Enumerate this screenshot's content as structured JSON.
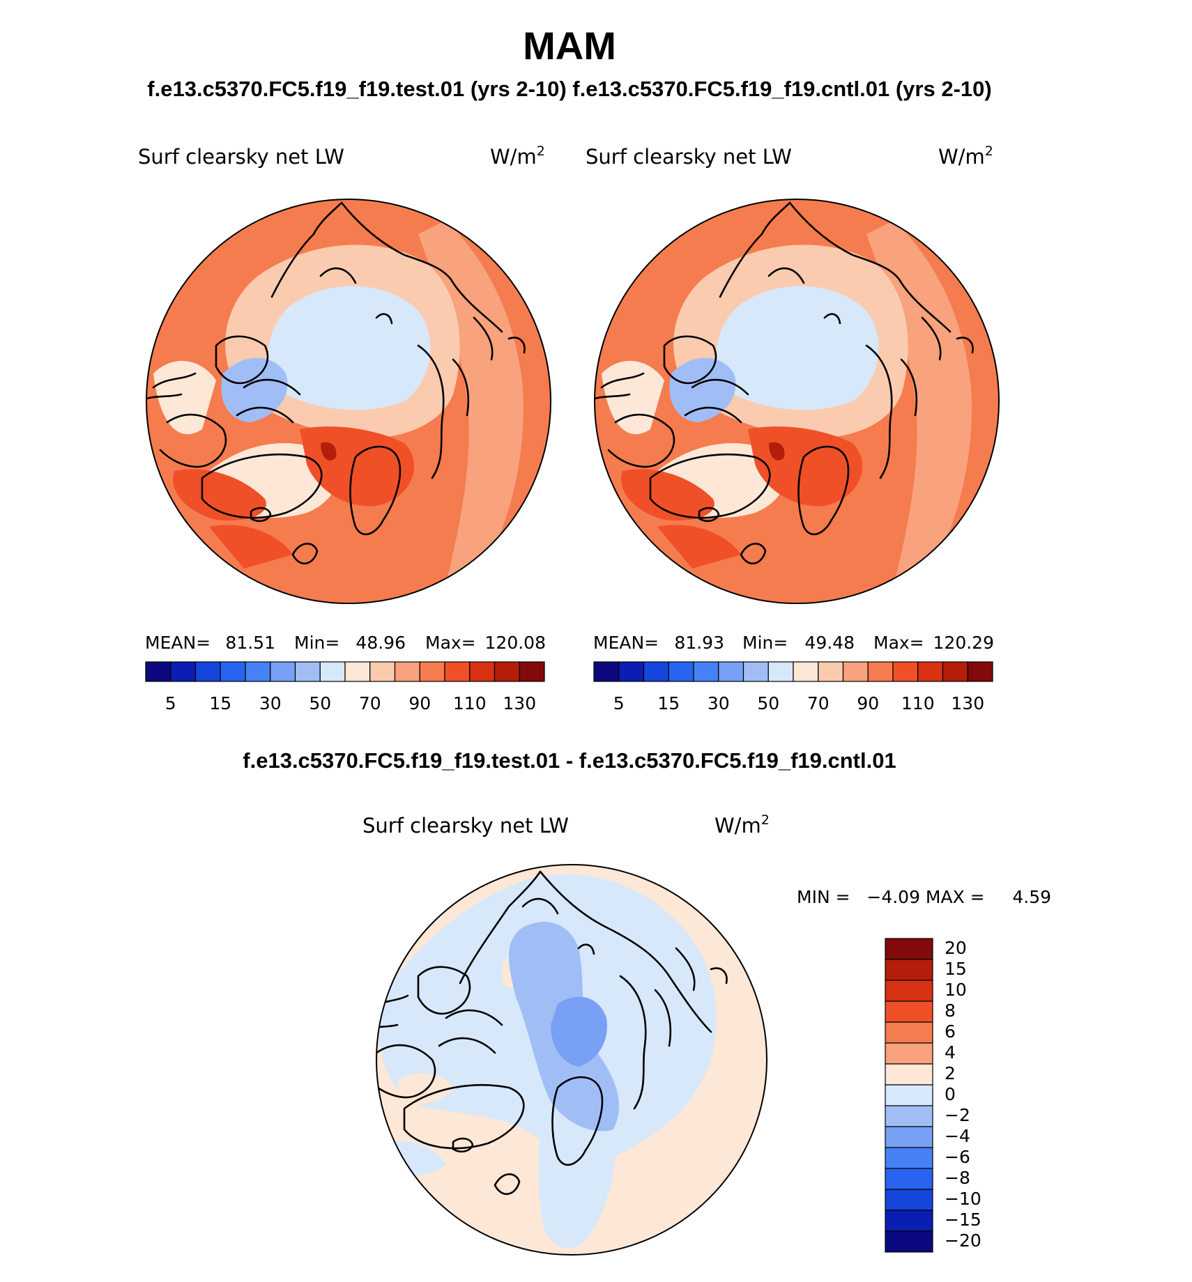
{
  "title": "MAM",
  "subtitle": "f.e13.c5370.FC5.f19_f19.test.01 (yrs 2-10) f.e13.c5370.FC5.f19_f19.cntl.01 (yrs 2-10)",
  "diff_title": "f.e13.c5370.FC5.f19_f19.test.01 - f.e13.c5370.FC5.f19_f19.cntl.01",
  "panels": [
    {
      "variable": "Surf clearsky net LW",
      "units_base": "W/m",
      "units_exp": "2",
      "stats": {
        "mean_label": "MEAN=",
        "mean": "81.51",
        "min_label": "Min=",
        "min": "48.96",
        "max_label": "Max=",
        "max": "120.08"
      }
    },
    {
      "variable": "Surf clearsky net LW",
      "units_base": "W/m",
      "units_exp": "2",
      "stats": {
        "mean_label": "MEAN=",
        "mean": "81.93",
        "min_label": "Min=",
        "min": "49.48",
        "max_label": "Max=",
        "max": "120.29"
      }
    }
  ],
  "diff_panel": {
    "variable": "Surf clearsky net LW",
    "units_base": "W/m",
    "units_exp": "2",
    "minmax_text": "MIN =   −4.09 MAX =     4.59"
  },
  "colorbar_top": {
    "colors": [
      "#0a0a7e",
      "#0a1eb4",
      "#1446dc",
      "#2864f0",
      "#4682f5",
      "#78a0f5",
      "#a0bef5",
      "#d7e8fa",
      "#fde7d7",
      "#fbcbb0",
      "#f8a27e",
      "#f57c4e",
      "#f05028",
      "#d73214",
      "#b41e0a",
      "#820a0a"
    ],
    "labels": [
      "5",
      "15",
      "30",
      "50",
      "70",
      "90",
      "110",
      "130"
    ]
  },
  "colorbar_diff": {
    "colors": [
      "#820a0a",
      "#b41e0a",
      "#d73214",
      "#f05028",
      "#f57c4e",
      "#f8a27e",
      "#fde7d7",
      "#d7e8fa",
      "#a0bef5",
      "#78a0f5",
      "#4682f5",
      "#2864f0",
      "#1446dc",
      "#0a1eb4",
      "#0a0a7e"
    ],
    "labels": [
      "20",
      "15",
      "10",
      "8",
      "6",
      "4",
      "2",
      "0",
      "−2",
      "−4",
      "−6",
      "−8",
      "−10",
      "−15",
      "−20"
    ]
  },
  "chart_data": [
    {
      "type": "heatmap",
      "projection": "north-polar-stereographic",
      "title": "Surf clearsky net LW",
      "units": "W/m2",
      "mean": 81.51,
      "min": 48.96,
      "max": 120.08,
      "levels": [
        5,
        10,
        15,
        20,
        30,
        40,
        50,
        60,
        70,
        80,
        90,
        100,
        110,
        120,
        130
      ],
      "dominant_levels": {
        "arctic_ocean": "50-60",
        "canadian_archipelago": "40-60",
        "greenland_interior": "60-70",
        "norwegian_sea": "100-120",
        "subtropics": "90-100"
      }
    },
    {
      "type": "heatmap",
      "projection": "north-polar-stereographic",
      "title": "Surf clearsky net LW",
      "units": "W/m2",
      "mean": 81.93,
      "min": 49.48,
      "max": 120.29,
      "levels": [
        5,
        10,
        15,
        20,
        30,
        40,
        50,
        60,
        70,
        80,
        90,
        100,
        110,
        120,
        130
      ],
      "dominant_levels": {
        "arctic_ocean": "50-60",
        "canadian_archipelago": "40-60",
        "greenland_interior": "60-70",
        "norwegian_sea": "100-120",
        "subtropics": "90-100"
      }
    },
    {
      "type": "heatmap",
      "projection": "north-polar-stereographic",
      "title": "Surf clearsky net LW",
      "units": "W/m2",
      "min": -4.09,
      "max": 4.59,
      "levels": [
        -20,
        -15,
        -10,
        -8,
        -6,
        -4,
        -2,
        0,
        2,
        4,
        6,
        8,
        10,
        15,
        20
      ],
      "dominant_levels": {
        "arctic_ocean": "-2-0",
        "eastern_siberia": "-4--2",
        "midlatitudes": "0-2"
      }
    }
  ]
}
